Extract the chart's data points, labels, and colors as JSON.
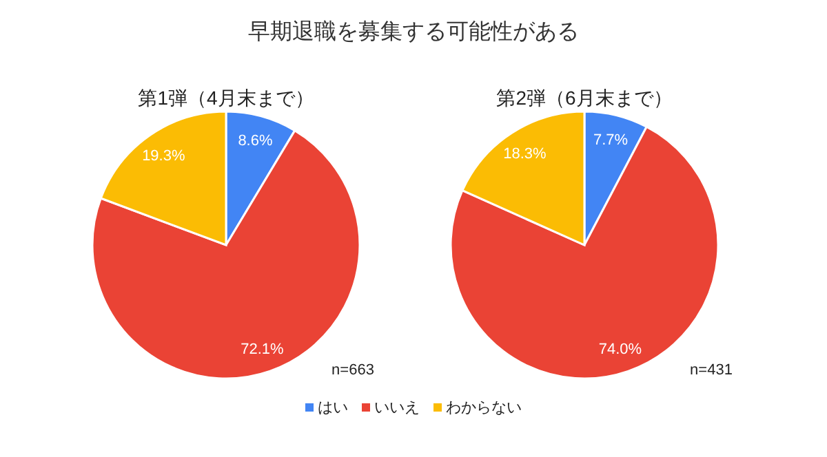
{
  "chart_data": [
    {
      "type": "pie",
      "title": "早期退職を募集する可能性がある",
      "subtitle": "第1弾（4月末まで）",
      "categories": [
        "はい",
        "いいえ",
        "わからない"
      ],
      "values": [
        8.6,
        72.1,
        19.3
      ],
      "colors": [
        "#4285f4",
        "#ea4335",
        "#fbbc04"
      ],
      "value_labels": [
        "8.6%",
        "72.1%",
        "19.3%"
      ],
      "annotations": [
        "n=663"
      ],
      "legend": "bottom"
    },
    {
      "type": "pie",
      "subtitle": "第2弾（6月末まで）",
      "categories": [
        null,
        null,
        null
      ],
      "values": [
        7.7,
        74.0,
        18.3
      ],
      "colors": [
        "#4285f4",
        "#ea4335",
        "#fbbc04"
      ],
      "value_labels": [
        "7.7%",
        "74.0%",
        "18.3%"
      ],
      "annotations": [
        "n=431"
      ]
    }
  ]
}
